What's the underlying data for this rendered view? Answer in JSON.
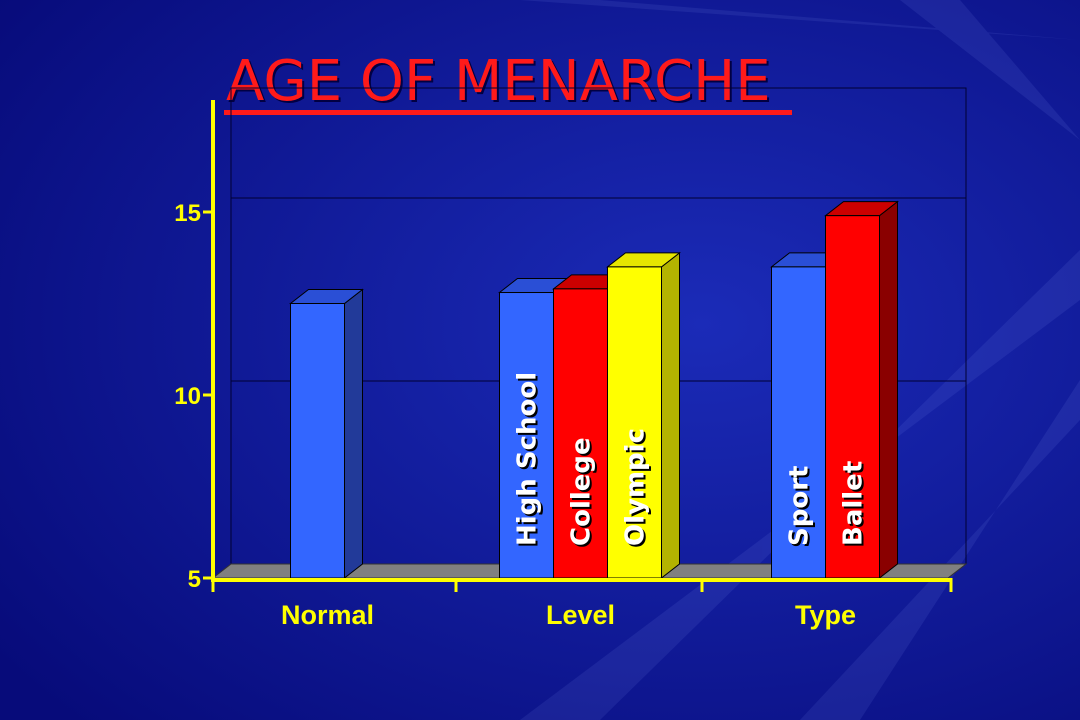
{
  "title": "AGE OF MENARCHE",
  "colors": {
    "background": "#0a0f8f",
    "title": "#ff1a1a",
    "axis": "#ffff00",
    "blue": "#3366ff",
    "red": "#ff0000",
    "yellow": "#ffff00",
    "floor": "#808080"
  },
  "chart_data": {
    "type": "bar",
    "title": "AGE OF MENARCHE",
    "xlabel": "",
    "ylabel": "",
    "ylim": [
      5,
      18
    ],
    "yticks": [
      5,
      10,
      15
    ],
    "grid": true,
    "legend": "none",
    "categories": [
      "Normal",
      "Level",
      "Type"
    ],
    "groups": [
      {
        "category": "Normal",
        "bars": [
          {
            "label": "",
            "value": 12.5,
            "color": "blue"
          }
        ]
      },
      {
        "category": "Level",
        "bars": [
          {
            "label": "High School",
            "value": 12.8,
            "color": "blue"
          },
          {
            "label": "College",
            "value": 12.9,
            "color": "red"
          },
          {
            "label": "Olympic",
            "value": 13.5,
            "color": "yellow"
          }
        ]
      },
      {
        "category": "Type",
        "bars": [
          {
            "label": "Sport",
            "value": 13.5,
            "color": "blue"
          },
          {
            "label": "Ballet",
            "value": 14.9,
            "color": "red"
          }
        ]
      }
    ]
  }
}
